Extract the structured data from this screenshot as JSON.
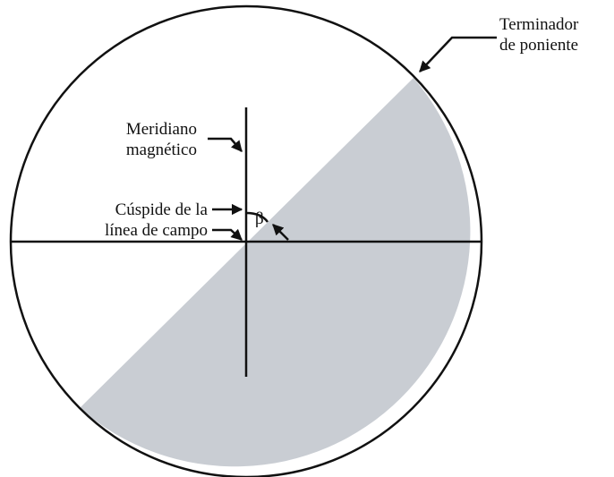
{
  "labels": {
    "terminator": [
      "Terminador",
      "de poniente"
    ],
    "meridian": [
      "Meridiano",
      "magnético"
    ],
    "cusp": [
      "Cúspide de la",
      "línea de campo"
    ],
    "angle": "β"
  }
}
